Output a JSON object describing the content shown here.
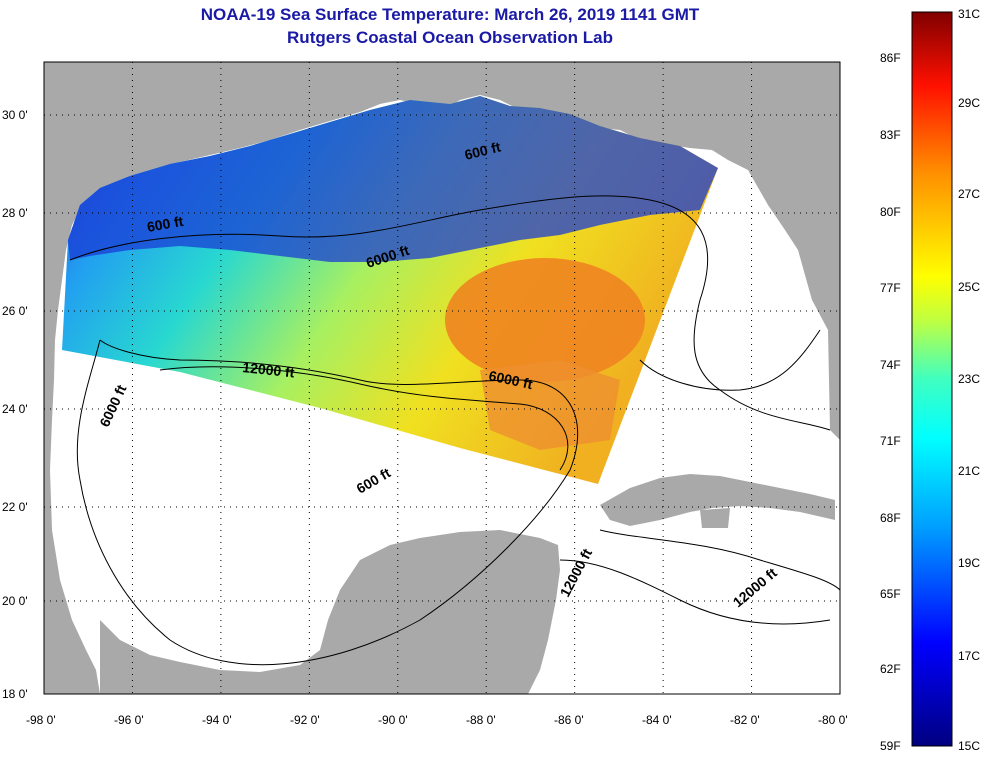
{
  "title": "NOAA-19 Sea Surface Temperature:  March 26, 2019 1141 GMT",
  "subtitle": "Rutgers Coastal Ocean Observation Lab",
  "latitude_labels": [
    "30 0'",
    "28 0'",
    "26 0'",
    "24 0'",
    "22 0'",
    "20 0'",
    "18 0'"
  ],
  "longitude_labels": [
    "-98 0'",
    "-96 0'",
    "-94 0'",
    "-92 0'",
    "-90 0'",
    "-88 0'",
    "-86 0'",
    "-84 0'",
    "-82 0'",
    "-80 0'"
  ],
  "depth_contour_labels": [
    "600 ft",
    "600 ft",
    "6000 ft",
    "12000 ft",
    "6000 ft",
    "6000 ft",
    "600 ft",
    "12000 ft",
    "12000 ft"
  ],
  "colorbar": {
    "fahrenheit_labels": [
      "86F",
      "83F",
      "80F",
      "77F",
      "74F",
      "71F",
      "68F",
      "65F",
      "62F",
      "59F"
    ],
    "celsius_labels": [
      "31C",
      "29C",
      "27C",
      "25C",
      "23C",
      "21C",
      "19C",
      "17C",
      "15C"
    ],
    "range_celsius": [
      15,
      31
    ],
    "colors": [
      "#000080",
      "#0000ff",
      "#00bfff",
      "#00ffff",
      "#ffff00",
      "#ff8000",
      "#ff0000",
      "#800000"
    ]
  },
  "colors": {
    "land": "#a9a9a9",
    "no_data": "#ffffff",
    "title": "#1a1aa6",
    "cold_water": "#1a3cd6",
    "warm_eddy": "#ee8420"
  }
}
